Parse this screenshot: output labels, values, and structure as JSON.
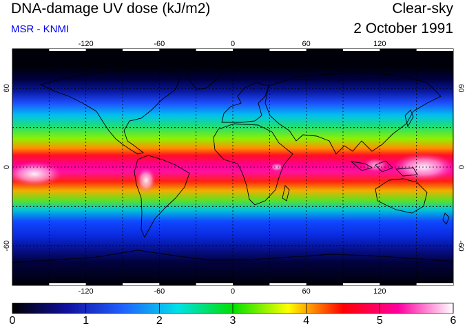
{
  "header": {
    "title": "DNA-damage UV dose (kJ/m2)",
    "credit": "MSR - KNMI",
    "sky_condition": "Clear-sky",
    "date": "2 October 1991"
  },
  "map": {
    "projection": "equirectangular",
    "lon_ticks": [
      "-120",
      "-60",
      "0",
      "60",
      "120"
    ],
    "lat_ticks": [
      "60",
      "0",
      "-60"
    ],
    "lon_lines": [
      -150,
      -120,
      -90,
      -60,
      -30,
      0,
      30,
      60,
      90,
      120,
      150
    ],
    "lat_lines": [
      -60,
      -30,
      0,
      30,
      60
    ],
    "gridline_style": "dotted",
    "field_description": "UV dose highest near the equator (magenta/white), decreasing toward the poles (blue/black)"
  },
  "colorbar": {
    "min": 0,
    "max": 6,
    "labels": [
      "0",
      "1",
      "2",
      "3",
      "4",
      "5",
      "6"
    ],
    "colors": [
      "#000000",
      "#1010a0",
      "#2060ff",
      "#00e0e8",
      "#00e000",
      "#ffff00",
      "#ff0000",
      "#ff00a0",
      "#ffffff"
    ]
  }
}
